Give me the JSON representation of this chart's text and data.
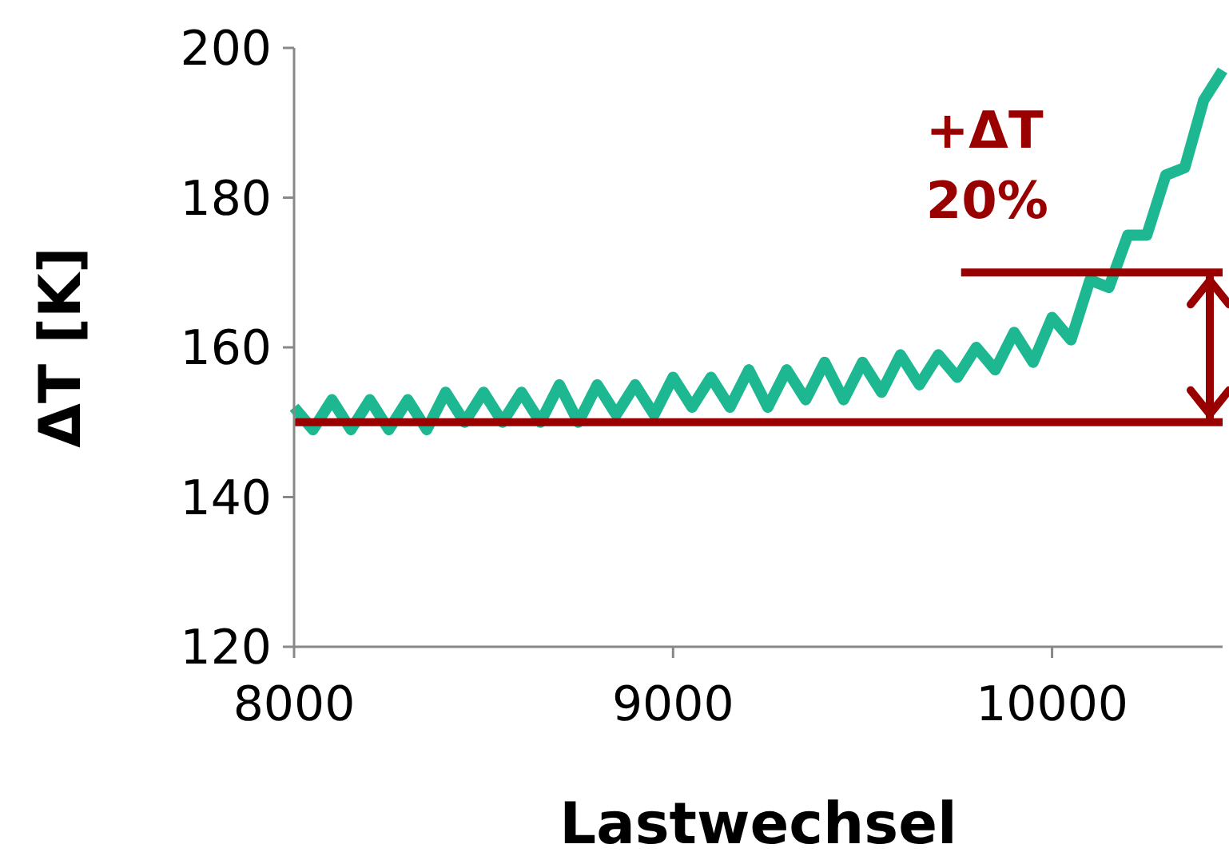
{
  "chart_data": {
    "type": "line",
    "xlabel": "Lastwechsel",
    "ylabel": "ΔT [K]",
    "xlim": [
      8000,
      10450
    ],
    "xticks": [
      8000,
      9000,
      10000
    ],
    "ylim": [
      120,
      200
    ],
    "yticks": [
      120,
      140,
      160,
      180,
      200
    ],
    "series": [
      {
        "color": "#1db891",
        "x": [
          8000,
          8050,
          8100,
          8150,
          8200,
          8250,
          8300,
          8350,
          8400,
          8450,
          8500,
          8550,
          8600,
          8650,
          8700,
          8750,
          8800,
          8850,
          8900,
          8950,
          9000,
          9050,
          9100,
          9150,
          9200,
          9250,
          9300,
          9350,
          9400,
          9450,
          9500,
          9550,
          9600,
          9650,
          9700,
          9750,
          9800,
          9850,
          9900,
          9950,
          10000,
          10050,
          10100,
          10150,
          10200,
          10250,
          10300,
          10350,
          10400,
          10450
        ],
        "values": [
          152,
          149,
          153,
          149,
          153,
          149,
          153,
          149,
          154,
          150,
          154,
          150,
          154,
          150,
          155,
          150,
          155,
          151,
          155,
          151,
          156,
          152,
          156,
          152,
          157,
          152,
          157,
          153,
          158,
          153,
          158,
          154,
          159,
          155,
          159,
          156,
          160,
          157,
          162,
          158,
          164,
          161,
          169,
          168,
          175,
          175,
          183,
          184,
          193,
          197
        ]
      },
      {
        "color": "#990000",
        "x": [
          9760,
          10450
        ],
        "values": [
          170,
          170
        ]
      }
    ],
    "ref_lines": [
      {
        "axis": "y",
        "value": 150,
        "color": "#990000"
      }
    ],
    "annotations": [
      "+ΔT\n20%"
    ],
    "grid": false
  }
}
